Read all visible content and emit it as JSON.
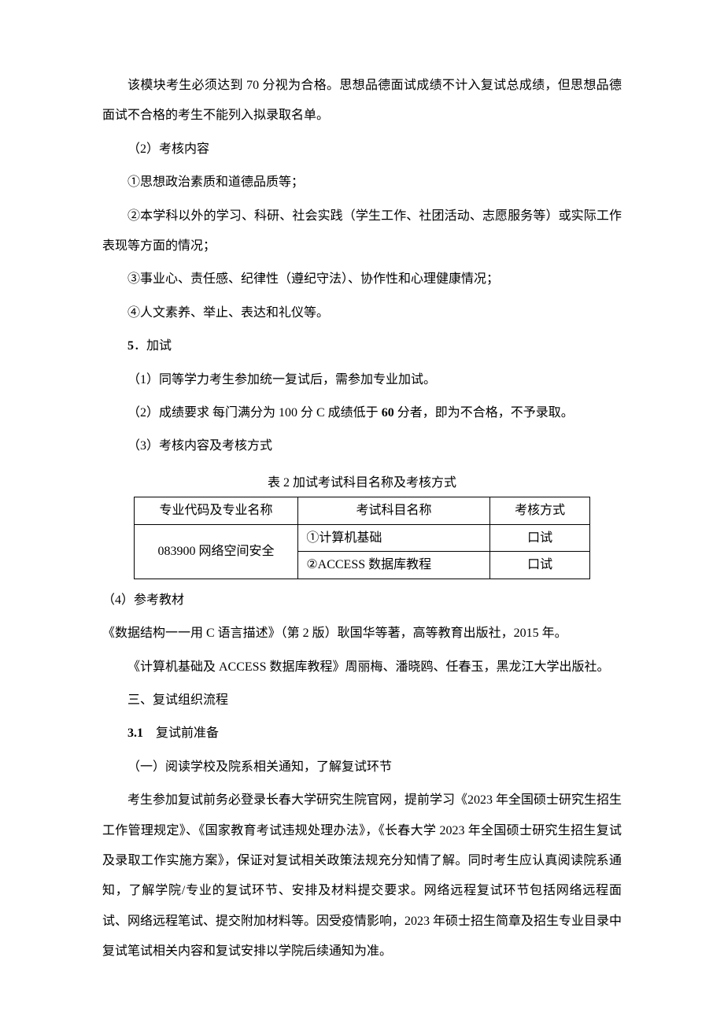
{
  "p": {
    "intro": "该模块考生必须达到 70 分视为合格。思想品德面试成绩不计入复试总成绩，但思想品德面试不合格的考生不能列入拟录取名单。",
    "section2": "（2）考核内容",
    "item1": "①思想政治素质和道德品质等；",
    "item2": "②本学科以外的学习、科研、社会实践（学生工作、社团活动、志愿服务等）或实际工作表现等方面的情况；",
    "item3": "③事业心、责任感、纪律性（遵纪守法）、协作性和心理健康情况；",
    "item4": "④人文素养、举止、表达和礼仪等。",
    "h5_num": "5",
    "h5_text": "．加试",
    "sub1": "（1）同等学力考生参加统一复试后，需参加专业加试。",
    "sub2_a": "（2）成绩要求 每门满分为 100 分 C 成绩低于 ",
    "sub2_bold": "60",
    "sub2_b": " 分者，即为不合格，不予录取。",
    "sub3": "（3）考核内容及考核方式",
    "table_caption": "表 2 加试考试科目名称及考核方式",
    "sub4": "（4）参考教材",
    "ref1": "《数据结构一一用 C 语言描述》（第 2 版）耿国华等著，高等教育出版社，2015 年。",
    "ref2": "《计算机基础及 ACCESS 数据库教程》周丽梅、潘晓鸥、任春玉，黑龙江大学出版社。",
    "h3": "三、复试组织流程",
    "h31_num": "3.1",
    "h31_text": "　复试前准备",
    "prep1": "（一）阅读学校及院系相关通知，了解复试环节",
    "prep_body": "考生参加复试前务必登录长春大学研究生院官网，提前学习《2023 年全国硕士研究生招生工作管理规定》、《国家教育考试违规处理办法》，《长春大学 2023 年全国硕士研究生招生复试及录取工作实施方案》，保证对复试相关政策法规充分知情了解。同时考生应认真阅读院系通知，了解学院/专业的复试环节、安排及材料提交要求。网络远程复试环节包括网络远程面试、网络远程笔试、提交附加材料等。因受疫情影响，2023 年硕士招生简章及招生专业目录中复试笔试相关内容和复试安排以学院后续通知为准。"
  },
  "table": {
    "headers": {
      "col1": "专业代码及专业名称",
      "col2": "考试科目名称",
      "col3": "考核方式"
    },
    "rows": {
      "major": "083900 网络空间安全",
      "r1_subject": "①计算机基础",
      "r1_method": "口试",
      "r2_subject": "②ACCESS 数据库教程",
      "r2_method": "口试"
    }
  },
  "style": {
    "text_color": "#000000",
    "background": "#ffffff",
    "font_size": 16,
    "border_color": "#000000"
  }
}
